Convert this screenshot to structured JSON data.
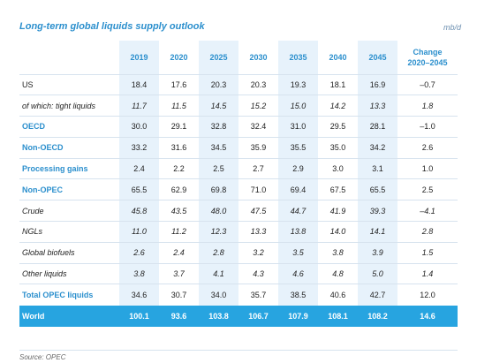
{
  "title": "Long-term global liquids supply outlook",
  "unit": "mb/d",
  "table": {
    "headers": [
      "",
      "2019",
      "2020",
      "2025",
      "2030",
      "2035",
      "2040",
      "2045",
      "Change 2020–2045"
    ],
    "header_change_line1": "Change",
    "header_change_line2": "2020–2045",
    "rows": [
      {
        "label": "US",
        "style": "normal",
        "values": [
          "18.4",
          "17.6",
          "20.3",
          "20.3",
          "19.3",
          "18.1",
          "16.9",
          "–0.7"
        ]
      },
      {
        "label": "of which: tight liquids",
        "style": "sub",
        "values": [
          "11.7",
          "11.5",
          "14.5",
          "15.2",
          "15.0",
          "14.2",
          "13.3",
          "1.8"
        ]
      },
      {
        "label": "OECD",
        "style": "bold",
        "values": [
          "30.0",
          "29.1",
          "32.8",
          "32.4",
          "31.0",
          "29.5",
          "28.1",
          "–1.0"
        ]
      },
      {
        "label": "Non-OECD",
        "style": "bold",
        "values": [
          "33.2",
          "31.6",
          "34.5",
          "35.9",
          "35.5",
          "35.0",
          "34.2",
          "2.6"
        ]
      },
      {
        "label": "Processing gains",
        "style": "bold",
        "values": [
          "2.4",
          "2.2",
          "2.5",
          "2.7",
          "2.9",
          "3.0",
          "3.1",
          "1.0"
        ]
      },
      {
        "label": "Non-OPEC",
        "style": "bold",
        "values": [
          "65.5",
          "62.9",
          "69.8",
          "71.0",
          "69.4",
          "67.5",
          "65.5",
          "2.5"
        ]
      },
      {
        "label": "Crude",
        "style": "sub",
        "values": [
          "45.8",
          "43.5",
          "48.0",
          "47.5",
          "44.7",
          "41.9",
          "39.3",
          "–4.1"
        ]
      },
      {
        "label": "NGLs",
        "style": "sub",
        "values": [
          "11.0",
          "11.2",
          "12.3",
          "13.3",
          "13.8",
          "14.0",
          "14.1",
          "2.8"
        ]
      },
      {
        "label": "Global biofuels",
        "style": "sub",
        "values": [
          "2.6",
          "2.4",
          "2.8",
          "3.2",
          "3.5",
          "3.8",
          "3.9",
          "1.5"
        ]
      },
      {
        "label": "Other liquids",
        "style": "sub",
        "values": [
          "3.8",
          "3.7",
          "4.1",
          "4.3",
          "4.6",
          "4.8",
          "5.0",
          "1.4"
        ]
      },
      {
        "label": "Total OPEC liquids",
        "style": "bold",
        "values": [
          "34.6",
          "30.7",
          "34.0",
          "35.7",
          "38.5",
          "40.6",
          "42.7",
          "12.0"
        ]
      },
      {
        "label": "World",
        "style": "world",
        "values": [
          "100.1",
          "93.6",
          "103.8",
          "106.7",
          "107.9",
          "108.1",
          "108.2",
          "14.6"
        ]
      }
    ]
  },
  "source": "Source: OPEC",
  "colors": {
    "accent": "#2b8fcd",
    "world_row": "#27a4e0",
    "shade": "#e7f2fb"
  }
}
